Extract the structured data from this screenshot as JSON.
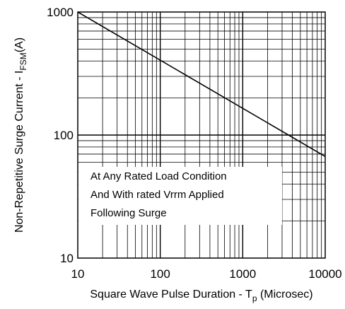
{
  "chart_data": {
    "type": "line",
    "x_scale": "log",
    "y_scale": "log",
    "xlim": [
      10,
      10000
    ],
    "ylim": [
      10,
      1000
    ],
    "grid": true,
    "x_ticks": [
      "10",
      "100",
      "1000",
      "10000"
    ],
    "y_ticks": [
      "10",
      "100",
      "1000"
    ],
    "xlabel": {
      "main": "Square Wave Pulse Duration - T",
      "sub": "p",
      "unit": " (Microsec)"
    },
    "ylabel": {
      "main": "Non-Repetitive Surge Current - I",
      "sub": "FSM",
      "unit": "(A)"
    },
    "annotations": [
      "At Any Rated Load Condition",
      "And With rated Vrrm Applied",
      "Following Surge"
    ],
    "series": [
      {
        "x": [
          10,
          10000
        ],
        "y": [
          1000,
          67
        ],
        "color": "#000000"
      }
    ]
  }
}
